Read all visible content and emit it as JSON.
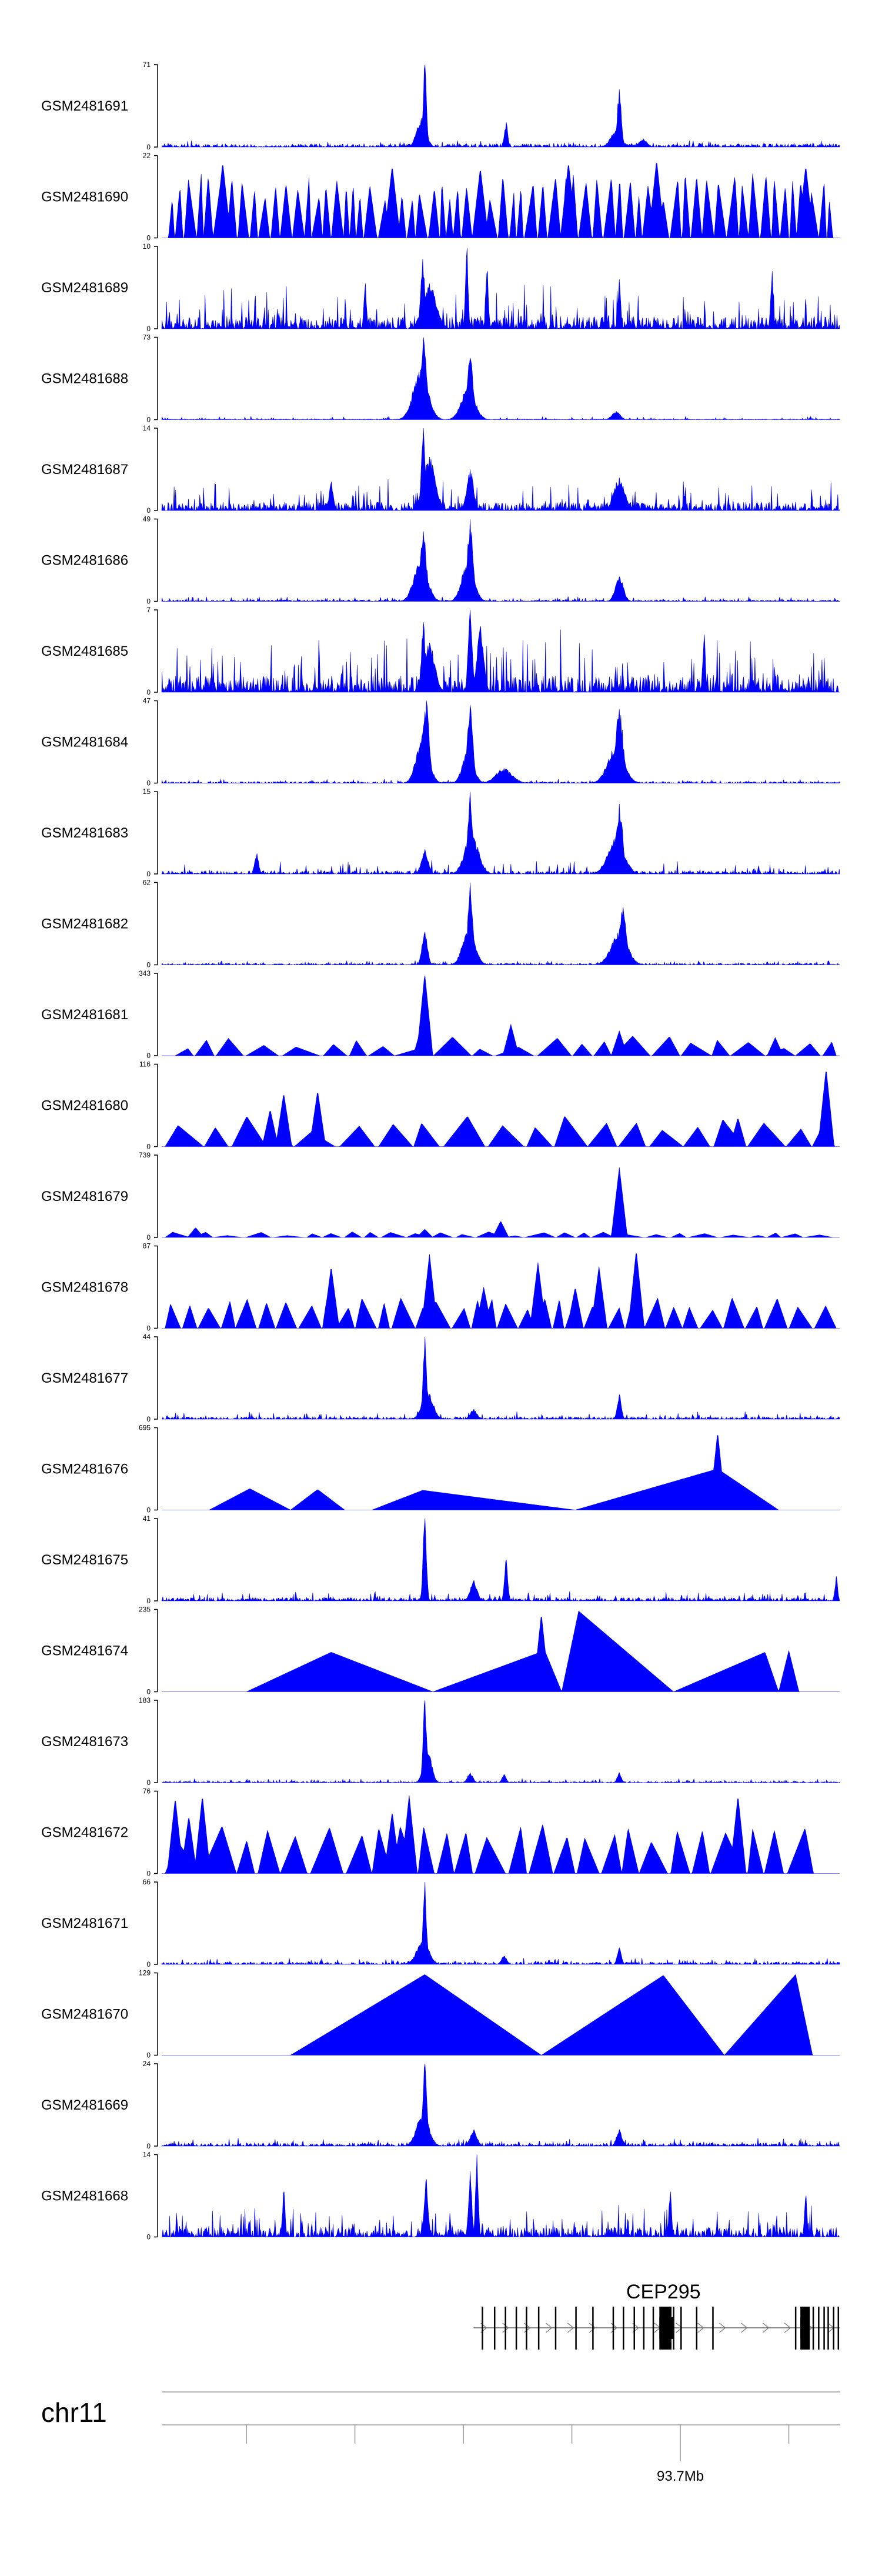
{
  "chart_data": {
    "type": "area",
    "title": "",
    "fill_color": "#0000ff",
    "axis_color": "#000000",
    "x_range": [
      0,
      100
    ],
    "tracks": [
      {
        "name": "GSM2481691",
        "ymax": "71",
        "ymin": "0",
        "style": "noise",
        "base": 0.04,
        "noise": 0.05,
        "seed": 91,
        "peaks": [
          [
            38.8,
            1.0,
            0.25
          ],
          [
            38.3,
            0.35,
            0.7
          ],
          [
            50.8,
            0.3,
            0.25
          ],
          [
            67.5,
            0.7,
            0.3
          ],
          [
            67.0,
            0.2,
            0.8
          ],
          [
            71.0,
            0.1,
            0.6
          ]
        ]
      },
      {
        "name": "GSM2481690",
        "ymax": "22",
        "ymin": "0",
        "style": "tri",
        "tri_start": 1.0,
        "tri_end": 99.0,
        "tri_n": 70,
        "tri_min": 0.45,
        "tri_max": 0.82,
        "seed": 90,
        "peaks": [
          [
            9.0,
            0.92
          ],
          [
            34.0,
            0.88
          ],
          [
            60.0,
            0.92
          ],
          [
            73.0,
            0.95
          ],
          [
            95.0,
            0.88
          ],
          [
            47.0,
            0.85
          ]
        ]
      },
      {
        "name": "GSM2481689",
        "ymax": "10",
        "ymin": "0",
        "style": "noise",
        "base": 0.15,
        "noise": 0.42,
        "seed": 89,
        "peaks": [
          [
            38.5,
            0.85,
            0.3
          ],
          [
            45.0,
            0.98,
            0.2
          ],
          [
            48.0,
            0.7,
            0.2
          ],
          [
            39.5,
            0.55,
            1.0
          ],
          [
            30.0,
            0.55,
            0.2
          ],
          [
            67.5,
            0.6,
            0.2
          ],
          [
            90.0,
            0.7,
            0.2
          ]
        ]
      },
      {
        "name": "GSM2481688",
        "ymax": "73",
        "ymin": "0",
        "style": "noise",
        "base": 0.01,
        "noise": 0.035,
        "seed": 88,
        "peaks": [
          [
            38.6,
            1.0,
            0.5
          ],
          [
            38.2,
            0.6,
            1.1
          ],
          [
            45.5,
            0.75,
            0.45
          ],
          [
            45.2,
            0.4,
            1.0
          ],
          [
            67.0,
            0.1,
            0.6
          ]
        ]
      },
      {
        "name": "GSM2481687",
        "ymax": "14",
        "ymin": "0",
        "style": "noise",
        "base": 0.1,
        "noise": 0.3,
        "seed": 87,
        "peaks": [
          [
            38.6,
            1.0,
            0.3
          ],
          [
            39.5,
            0.65,
            0.9
          ],
          [
            45.5,
            0.5,
            0.5
          ],
          [
            67.5,
            0.4,
            0.8
          ],
          [
            25.0,
            0.35,
            0.3
          ]
        ]
      },
      {
        "name": "GSM2481686",
        "ymax": "49",
        "ymin": "0",
        "style": "noise",
        "base": 0.02,
        "noise": 0.05,
        "seed": 86,
        "peaks": [
          [
            38.6,
            0.85,
            0.45
          ],
          [
            38.2,
            0.5,
            1.0
          ],
          [
            45.5,
            1.0,
            0.4
          ],
          [
            45.2,
            0.5,
            0.9
          ],
          [
            67.5,
            0.3,
            0.6
          ]
        ]
      },
      {
        "name": "GSM2481685",
        "ymax": "7",
        "ymin": "0",
        "style": "noise",
        "base": 0.2,
        "noise": 0.6,
        "seed": 85,
        "peaks": [
          [
            38.6,
            0.85,
            0.3
          ],
          [
            45.5,
            1.0,
            0.3
          ],
          [
            47.0,
            0.8,
            0.5
          ],
          [
            39.5,
            0.6,
            0.8
          ],
          [
            80.0,
            0.7,
            0.2
          ]
        ]
      },
      {
        "name": "GSM2481684",
        "ymax": "47",
        "ymin": "0",
        "style": "noise",
        "base": 0.02,
        "noise": 0.04,
        "seed": 84,
        "peaks": [
          [
            39.0,
            1.0,
            0.45
          ],
          [
            38.5,
            0.6,
            0.9
          ],
          [
            45.5,
            0.95,
            0.4
          ],
          [
            45.2,
            0.4,
            0.8
          ],
          [
            50.5,
            0.18,
            1.2
          ],
          [
            67.5,
            0.9,
            0.55
          ],
          [
            67.0,
            0.45,
            1.2
          ]
        ]
      },
      {
        "name": "GSM2481683",
        "ymax": "15",
        "ymin": "0",
        "style": "noise",
        "base": 0.04,
        "noise": 0.15,
        "seed": 83,
        "peaks": [
          [
            45.5,
            1.0,
            0.35
          ],
          [
            45.7,
            0.5,
            1.0
          ],
          [
            67.5,
            0.85,
            0.5
          ],
          [
            67.0,
            0.45,
            1.2
          ],
          [
            38.8,
            0.3,
            0.5
          ],
          [
            14.0,
            0.25,
            0.3
          ]
        ]
      },
      {
        "name": "GSM2481682",
        "ymax": "62",
        "ymin": "0",
        "style": "noise",
        "base": 0.02,
        "noise": 0.04,
        "seed": 82,
        "peaks": [
          [
            38.8,
            0.4,
            0.4
          ],
          [
            45.5,
            1.0,
            0.35
          ],
          [
            45.3,
            0.45,
            0.9
          ],
          [
            68.0,
            0.7,
            0.5
          ],
          [
            67.5,
            0.4,
            1.2
          ]
        ]
      },
      {
        "name": "GSM2481681",
        "ymax": "343",
        "ymin": "0",
        "style": "tri",
        "tri_start": 2.0,
        "tri_end": 99.5,
        "tri_n": 24,
        "tri_min": 0.08,
        "tri_max": 0.24,
        "seed": 81,
        "peaks": [
          [
            38.8,
            1.0
          ],
          [
            51.5,
            0.38
          ],
          [
            67.5,
            0.3
          ],
          [
            90.5,
            0.22
          ],
          [
            38.3,
            0.35
          ]
        ]
      },
      {
        "name": "GSM2481680",
        "ymax": "116",
        "ymin": "0",
        "style": "tri",
        "tri_start": 0.5,
        "tri_end": 98.0,
        "tri_n": 22,
        "tri_min": 0.15,
        "tri_max": 0.38,
        "seed": 80,
        "peaks": [
          [
            18.0,
            0.65
          ],
          [
            23.0,
            0.68
          ],
          [
            98.0,
            0.95
          ],
          [
            16.0,
            0.45
          ],
          [
            85.0,
            0.35
          ]
        ]
      },
      {
        "name": "GSM2481679",
        "ymax": "739",
        "ymin": "0",
        "style": "tri",
        "tri_start": 0.5,
        "tri_end": 99.0,
        "tri_n": 30,
        "tri_min": 0.02,
        "tri_max": 0.07,
        "seed": 79,
        "peaks": [
          [
            67.5,
            0.85
          ],
          [
            50.0,
            0.2
          ],
          [
            5.0,
            0.12
          ],
          [
            38.8,
            0.1
          ]
        ]
      },
      {
        "name": "GSM2481678",
        "ymax": "87",
        "ymin": "0",
        "style": "tri",
        "tri_start": 0.5,
        "tri_end": 99.5,
        "tri_n": 40,
        "tri_min": 0.22,
        "tri_max": 0.38,
        "seed": 78,
        "peaks": [
          [
            25.0,
            0.75
          ],
          [
            39.5,
            0.9
          ],
          [
            55.5,
            0.8
          ],
          [
            64.5,
            0.75
          ],
          [
            70.0,
            0.95
          ],
          [
            61.0,
            0.5
          ],
          [
            47.5,
            0.5
          ]
        ]
      },
      {
        "name": "GSM2481677",
        "ymax": "44",
        "ymin": "0",
        "style": "noise",
        "base": 0.03,
        "noise": 0.07,
        "seed": 77,
        "peaks": [
          [
            38.8,
            1.0,
            0.25
          ],
          [
            39.2,
            0.35,
            0.8
          ],
          [
            67.5,
            0.3,
            0.3
          ],
          [
            46.0,
            0.12,
            0.5
          ]
        ]
      },
      {
        "name": "GSM2481676",
        "ymax": "695",
        "ymin": "0",
        "style": "tri",
        "tri_start": 7.0,
        "tri_end": 91.0,
        "tri_n": 0,
        "tri_min": 0.1,
        "tri_max": 0.2,
        "seed": 76,
        "tri_list": [
          [
            7.0,
            13.0,
            19.0,
            0.26
          ],
          [
            19.0,
            23.0,
            27.0,
            0.25
          ],
          [
            31.0,
            38.5,
            61.0,
            0.24
          ],
          [
            61.0,
            82.0,
            91.0,
            0.5
          ]
        ],
        "peaks": [
          [
            82.0,
            0.95
          ]
        ]
      },
      {
        "name": "GSM2481675",
        "ymax": "41",
        "ymin": "0",
        "style": "noise",
        "base": 0.04,
        "noise": 0.1,
        "seed": 75,
        "peaks": [
          [
            38.8,
            1.0,
            0.25
          ],
          [
            50.8,
            0.5,
            0.25
          ],
          [
            46.0,
            0.25,
            0.5
          ],
          [
            99.5,
            0.3,
            0.2
          ]
        ]
      },
      {
        "name": "GSM2481674",
        "ymax": "235",
        "ymin": "0",
        "style": "tri",
        "tri_start": 12.0,
        "tri_end": 94.0,
        "tri_n": 0,
        "tri_min": 0.1,
        "tri_max": 0.2,
        "seed": 74,
        "tri_list": [
          [
            12.5,
            25.0,
            40.0,
            0.48
          ],
          [
            40.0,
            56.5,
            59.0,
            0.5
          ],
          [
            59.0,
            61.5,
            75.5,
            0.98
          ],
          [
            75.5,
            89.0,
            91.0,
            0.48
          ],
          [
            91.0,
            92.5,
            94.0,
            0.5
          ]
        ],
        "peaks": [
          [
            56.0,
            0.95
          ]
        ]
      },
      {
        "name": "GSM2481673",
        "ymax": "183",
        "ymin": "0",
        "style": "noise",
        "base": 0.015,
        "noise": 0.04,
        "seed": 73,
        "peaks": [
          [
            38.8,
            1.0,
            0.25
          ],
          [
            39.2,
            0.4,
            0.6
          ],
          [
            45.5,
            0.12,
            0.4
          ],
          [
            67.5,
            0.12,
            0.3
          ],
          [
            50.5,
            0.1,
            0.3
          ]
        ]
      },
      {
        "name": "GSM2481672",
        "ymax": "76",
        "ymin": "0",
        "style": "tri",
        "tri_start": 0.5,
        "tri_end": 99.5,
        "tri_n": 26,
        "tri_min": 0.38,
        "tri_max": 0.6,
        "seed": 72,
        "peaks": [
          [
            2.0,
            0.92
          ],
          [
            4.0,
            0.7
          ],
          [
            6.0,
            0.95
          ],
          [
            36.5,
            0.95
          ],
          [
            85.0,
            0.95
          ],
          [
            34.0,
            0.75
          ]
        ]
      },
      {
        "name": "GSM2481671",
        "ymax": "66",
        "ymin": "0",
        "style": "noise",
        "base": 0.03,
        "noise": 0.06,
        "seed": 71,
        "peaks": [
          [
            38.8,
            1.0,
            0.25
          ],
          [
            38.5,
            0.3,
            0.9
          ],
          [
            67.5,
            0.2,
            0.3
          ],
          [
            50.5,
            0.1,
            0.4
          ]
        ]
      },
      {
        "name": "GSM2481670",
        "ymax": "129",
        "ymin": "0",
        "style": "tri",
        "tri_start": 19.0,
        "tri_end": 96.0,
        "tri_n": 0,
        "tri_min": 0.1,
        "tri_max": 0.2,
        "seed": 70,
        "tri_list": [
          [
            19.0,
            38.8,
            56.0,
            0.98
          ],
          [
            56.0,
            74.0,
            83.0,
            0.97
          ],
          [
            83.0,
            93.5,
            96.0,
            0.98
          ]
        ],
        "peaks": []
      },
      {
        "name": "GSM2481669",
        "ymax": "24",
        "ymin": "0",
        "style": "noise",
        "base": 0.04,
        "noise": 0.08,
        "seed": 69,
        "peaks": [
          [
            38.8,
            1.0,
            0.3
          ],
          [
            38.5,
            0.4,
            0.9
          ],
          [
            46.0,
            0.2,
            0.5
          ],
          [
            67.5,
            0.2,
            0.4
          ]
        ]
      },
      {
        "name": "GSM2481668",
        "ymax": "14",
        "ymin": "0",
        "style": "noise",
        "base": 0.12,
        "noise": 0.32,
        "seed": 68,
        "peaks": [
          [
            46.5,
            1.0,
            0.2
          ],
          [
            45.5,
            0.8,
            0.25
          ],
          [
            39.0,
            0.7,
            0.3
          ],
          [
            18.0,
            0.55,
            0.2
          ],
          [
            75.0,
            0.55,
            0.2
          ],
          [
            95.0,
            0.5,
            0.2
          ]
        ]
      }
    ],
    "gene": {
      "name": "CEP295",
      "strand": "+",
      "span": [
        46.0,
        100.0
      ],
      "exons": [
        [
          47.2,
          0.12
        ],
        [
          49.0,
          0.12
        ],
        [
          50.6,
          0.14
        ],
        [
          52.2,
          0.12
        ],
        [
          53.7,
          0.12
        ],
        [
          55.5,
          0.14
        ],
        [
          58.0,
          0.14
        ],
        [
          61.0,
          0.14
        ],
        [
          63.5,
          0.14
        ],
        [
          66.5,
          0.14
        ],
        [
          68.0,
          0.14
        ],
        [
          69.6,
          0.16
        ],
        [
          71.0,
          0.14
        ],
        [
          72.4,
          0.14
        ],
        [
          73.4,
          1.8
        ],
        [
          75.4,
          0.12
        ],
        [
          76.5,
          0.14
        ],
        [
          78.8,
          0.12
        ],
        [
          81.2,
          0.12
        ],
        [
          93.4,
          0.14
        ],
        [
          94.2,
          1.4
        ],
        [
          96.0,
          0.12
        ],
        [
          96.8,
          0.12
        ],
        [
          97.6,
          0.12
        ],
        [
          98.2,
          0.14
        ],
        [
          99.0,
          0.14
        ],
        [
          99.7,
          0.18
        ]
      ],
      "thick_exons": [
        [
          73.4,
          2.0
        ],
        [
          94.2,
          1.2
        ]
      ]
    },
    "chromosome": "chr11",
    "axis_ticks": [
      12.5,
      28.5,
      44.5,
      60.5,
      76.5,
      92.5
    ],
    "labeled_ticks": [
      {
        "x": 76.5,
        "label": "93.7Mb"
      }
    ]
  }
}
